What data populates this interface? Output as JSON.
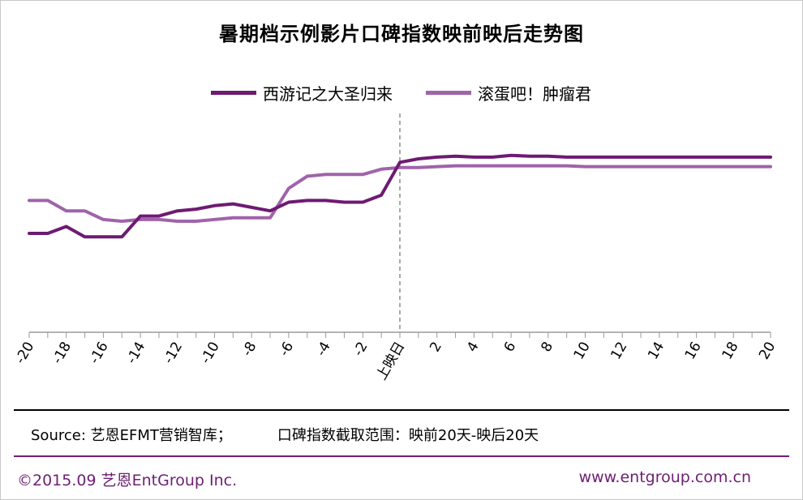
{
  "chart_data": {
    "type": "line",
    "title": "暑期档示例影片口碑指数映前映后走势图",
    "x": [
      -20,
      -19,
      -18,
      -17,
      -16,
      -15,
      -14,
      -13,
      -12,
      -11,
      -10,
      -9,
      -8,
      -7,
      -6,
      -5,
      -4,
      -3,
      -2,
      -1,
      0,
      1,
      2,
      3,
      4,
      5,
      6,
      7,
      8,
      9,
      10,
      11,
      12,
      13,
      14,
      15,
      16,
      17,
      18,
      19,
      20
    ],
    "x_tick_labels": [
      "-20",
      "-18",
      "-16",
      "-14",
      "-12",
      "-10",
      "-8",
      "-6",
      "-4",
      "-2",
      "上映日",
      "2",
      "4",
      "6",
      "8",
      "10",
      "12",
      "14",
      "16",
      "18",
      "20"
    ],
    "release_marker_x": 0,
    "ylim": [
      0,
      100
    ],
    "y_axis_visible": false,
    "grid": false,
    "legend_position": "top-center",
    "series": [
      {
        "name": "西游记之大圣归来",
        "color": "#6e1a72",
        "values": [
          57,
          57,
          61,
          55,
          55,
          55,
          67,
          67,
          70,
          71,
          73,
          74,
          72,
          70,
          75,
          76,
          76,
          75,
          75,
          79,
          98,
          100,
          101,
          101.5,
          101,
          101,
          102,
          101.5,
          101.5,
          101,
          101,
          101,
          101,
          101,
          101,
          101,
          101,
          101,
          101,
          101,
          101
        ]
      },
      {
        "name": "滚蛋吧！肿瘤君",
        "color": "#a063aa",
        "values": [
          76,
          76,
          70,
          70,
          65,
          64,
          65,
          65,
          64,
          64,
          65,
          66,
          66,
          66,
          83,
          90,
          91,
          91,
          91,
          94,
          95,
          95,
          95.5,
          96,
          96,
          96,
          96,
          96,
          96,
          96,
          95.5,
          95.5,
          95.5,
          95.5,
          95.5,
          95.5,
          95.5,
          95.5,
          95.5,
          95.5,
          95.5
        ]
      }
    ]
  },
  "source_text": "Source: 艺恩EFMT营销智库；",
  "range_text": "口碑指数截取范围：映前20天-映后20天",
  "copyright_text": "©2015.09  艺恩EntGroup Inc.",
  "website_text": "www.entgroup.com.cn",
  "colors": {
    "series1": "#6e1a72",
    "series2": "#a063aa",
    "footer_text": "#6d1f73",
    "divider": "#7a1a7a"
  }
}
